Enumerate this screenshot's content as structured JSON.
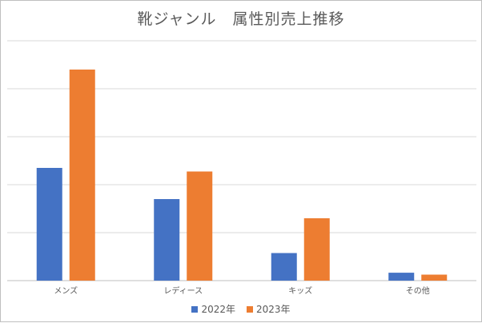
{
  "chart_data": {
    "type": "bar",
    "title": "靴ジャンル　属性別売上推移",
    "xlabel": "",
    "ylabel": "",
    "categories": [
      "メンズ",
      "レディース",
      "キッズ",
      "その他"
    ],
    "series": [
      {
        "name": "2022年",
        "color": "#4472c4",
        "values": [
          47,
          34,
          11.5,
          3.3
        ]
      },
      {
        "name": "2023年",
        "color": "#ed7d31",
        "values": [
          88,
          45.5,
          26,
          2.5
        ]
      }
    ],
    "ylim": [
      0,
      100
    ],
    "y_axis_labels_visible": false,
    "grid": true,
    "legend_position": "bottom"
  }
}
